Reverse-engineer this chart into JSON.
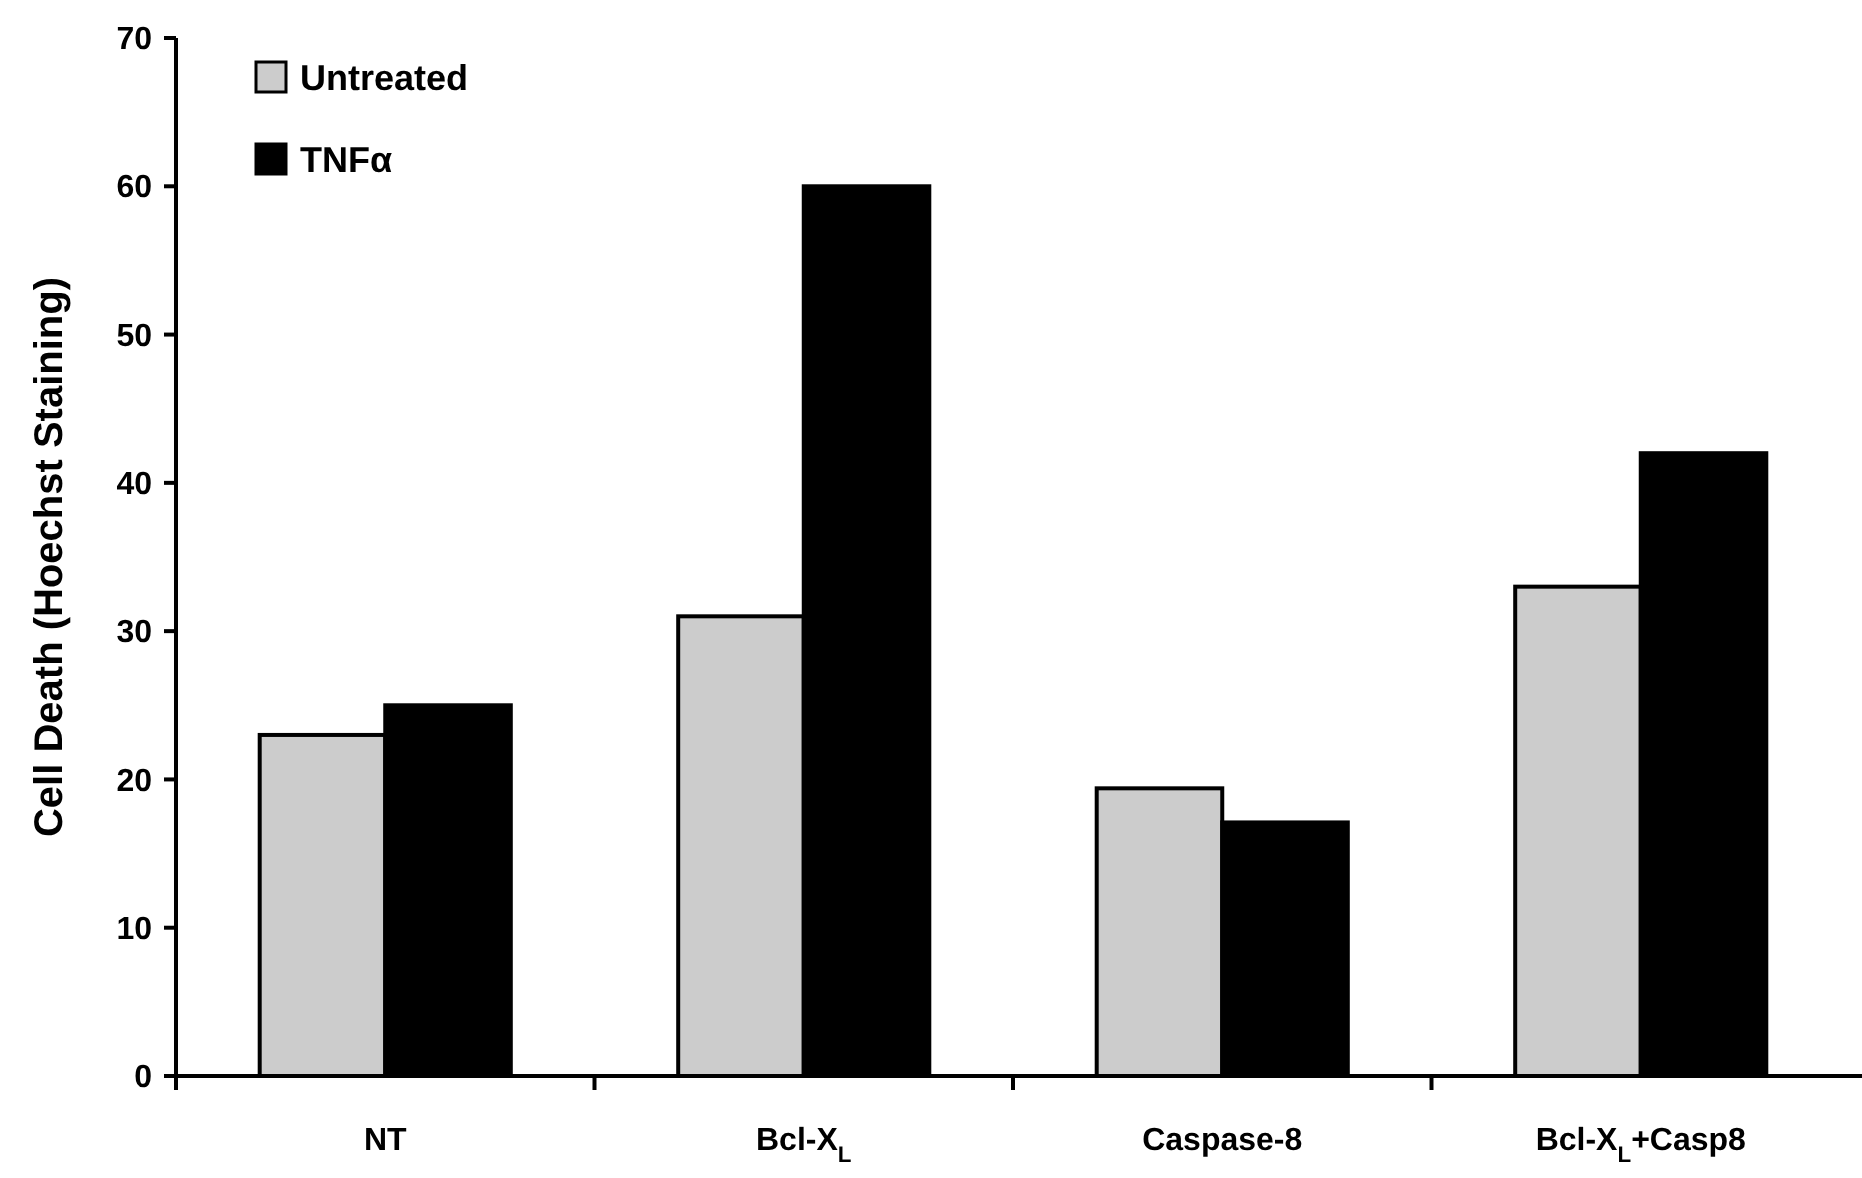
{
  "chart_data": {
    "type": "bar",
    "ylabel": "Cell Death (Hoechst Staining)",
    "categories": [
      "NT",
      "Bcl-X$_{L}$",
      "Caspase-8",
      "Bcl-X$_{L}$+Casp8"
    ],
    "series": [
      {
        "name": "Untreated",
        "color": "#cccccc",
        "values": [
          23,
          31,
          19.4,
          33
        ]
      },
      {
        "name": "TNFα",
        "color": "#000000",
        "values": [
          25,
          60,
          17.1,
          42
        ]
      }
    ],
    "ylim": [
      0,
      70
    ],
    "yticks": [
      0,
      10,
      20,
      30,
      40,
      50,
      60,
      70
    ],
    "legend": "top left",
    "grid": false
  }
}
